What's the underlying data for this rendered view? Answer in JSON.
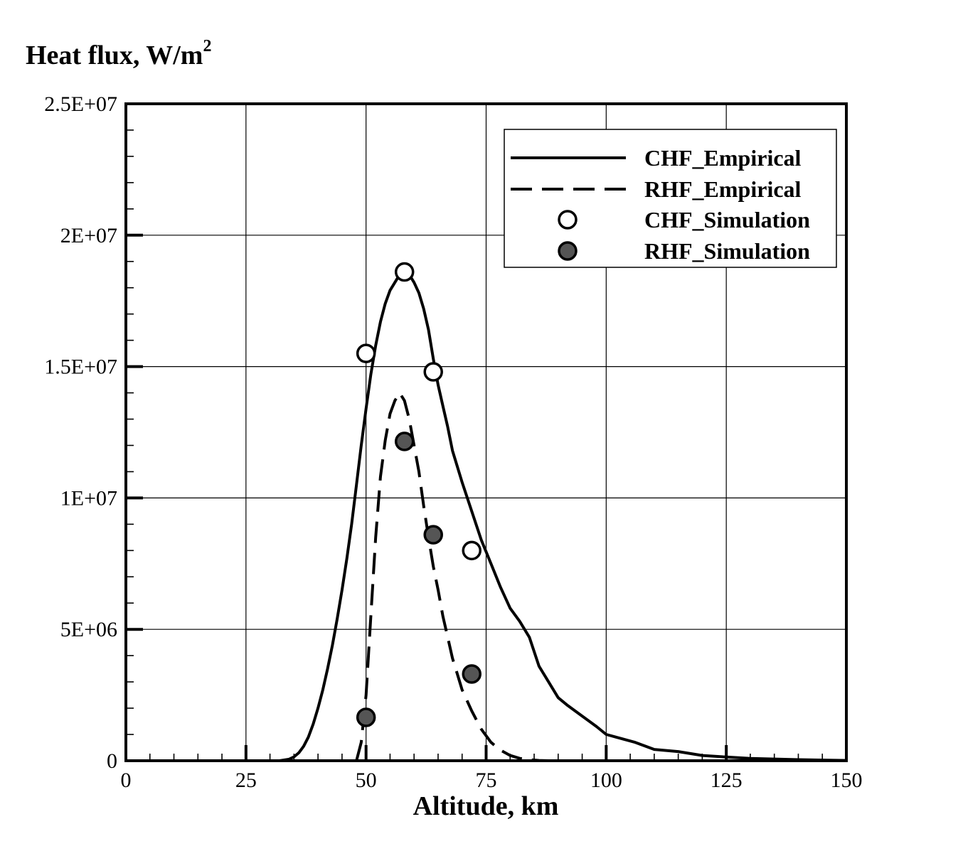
{
  "chart_data": {
    "type": "line",
    "title": "",
    "xlabel": "Altitude, km",
    "ylabel_main": "Heat flux, W/m",
    "ylabel_sup": "2",
    "xlim": [
      0,
      150
    ],
    "ylim": [
      0,
      25000000
    ],
    "grid": true,
    "legend_position": "top-right",
    "x_ticks": [
      {
        "value": 0,
        "label": "0"
      },
      {
        "value": 25,
        "label": "25"
      },
      {
        "value": 50,
        "label": "50"
      },
      {
        "value": 75,
        "label": "75"
      },
      {
        "value": 100,
        "label": "100"
      },
      {
        "value": 125,
        "label": "125"
      },
      {
        "value": 150,
        "label": "150"
      }
    ],
    "y_ticks": [
      {
        "value": 0,
        "label": "0"
      },
      {
        "value": 5000000,
        "label": "5E+06"
      },
      {
        "value": 10000000,
        "label": "1E+07"
      },
      {
        "value": 15000000,
        "label": "1.5E+07"
      },
      {
        "value": 20000000,
        "label": "2E+07"
      },
      {
        "value": 25000000,
        "label": "2.5E+07"
      }
    ],
    "series": [
      {
        "name": "CHF_Empirical",
        "kind": "line",
        "style": "solid",
        "color": "#000000",
        "points": [
          [
            0,
            0
          ],
          [
            25,
            0
          ],
          [
            32,
            0
          ],
          [
            34,
            60000
          ],
          [
            35,
            150000
          ],
          [
            36,
            300000
          ],
          [
            37,
            550000
          ],
          [
            38,
            900000
          ],
          [
            39,
            1400000
          ],
          [
            40,
            2000000
          ],
          [
            41,
            2700000
          ],
          [
            42,
            3500000
          ],
          [
            43,
            4400000
          ],
          [
            44,
            5400000
          ],
          [
            45,
            6500000
          ],
          [
            46,
            7700000
          ],
          [
            47,
            9000000
          ],
          [
            48,
            10500000
          ],
          [
            49,
            12000000
          ],
          [
            50,
            13400000
          ],
          [
            51,
            14700000
          ],
          [
            52,
            15800000
          ],
          [
            53,
            16700000
          ],
          [
            54,
            17400000
          ],
          [
            55,
            17900000
          ],
          [
            56,
            18200000
          ],
          [
            57,
            18500000
          ],
          [
            58,
            18600000
          ],
          [
            59,
            18500000
          ],
          [
            60,
            18200000
          ],
          [
            61,
            17800000
          ],
          [
            62,
            17200000
          ],
          [
            63,
            16400000
          ],
          [
            64,
            15300000
          ],
          [
            65,
            14300000
          ],
          [
            66,
            13500000
          ],
          [
            67,
            12700000
          ],
          [
            68,
            11800000
          ],
          [
            70,
            10600000
          ],
          [
            72,
            9500000
          ],
          [
            74,
            8400000
          ],
          [
            76,
            7500000
          ],
          [
            78,
            6600000
          ],
          [
            80,
            5800000
          ],
          [
            82,
            5300000
          ],
          [
            84,
            4700000
          ],
          [
            86,
            3600000
          ],
          [
            88,
            3000000
          ],
          [
            90,
            2400000
          ],
          [
            92,
            2100000
          ],
          [
            95,
            1700000
          ],
          [
            98,
            1300000
          ],
          [
            100,
            1000000
          ],
          [
            103,
            850000
          ],
          [
            106,
            700000
          ],
          [
            110,
            430000
          ],
          [
            115,
            350000
          ],
          [
            120,
            200000
          ],
          [
            125,
            140000
          ],
          [
            130,
            90000
          ],
          [
            140,
            40000
          ],
          [
            150,
            10000
          ]
        ]
      },
      {
        "name": "RHF_Empirical",
        "kind": "line",
        "style": "dashed",
        "color": "#000000",
        "points": [
          [
            48,
            0
          ],
          [
            49,
            700000
          ],
          [
            50,
            2500000
          ],
          [
            51,
            5500000
          ],
          [
            52,
            8500000
          ],
          [
            53,
            10800000
          ],
          [
            54,
            12200000
          ],
          [
            55,
            13200000
          ],
          [
            56,
            13700000
          ],
          [
            57,
            14000000
          ],
          [
            58,
            13700000
          ],
          [
            59,
            13000000
          ],
          [
            60,
            12000000
          ],
          [
            61,
            11000000
          ],
          [
            62,
            9700000
          ],
          [
            63,
            8500000
          ],
          [
            64,
            7400000
          ],
          [
            65,
            6500000
          ],
          [
            66,
            5500000
          ],
          [
            67,
            4700000
          ],
          [
            68,
            3900000
          ],
          [
            69,
            3300000
          ],
          [
            70,
            2700000
          ],
          [
            72,
            1900000
          ],
          [
            74,
            1200000
          ],
          [
            76,
            700000
          ],
          [
            78,
            400000
          ],
          [
            80,
            200000
          ],
          [
            82,
            90000
          ],
          [
            84,
            40000
          ],
          [
            86,
            10000
          ],
          [
            88,
            0
          ]
        ]
      },
      {
        "name": "CHF_Simulation",
        "kind": "marker",
        "marker": "open-circle",
        "color": "#ffffff",
        "points": [
          [
            50,
            15500000
          ],
          [
            58,
            18600000
          ],
          [
            64,
            14800000
          ],
          [
            72,
            8000000
          ]
        ]
      },
      {
        "name": "RHF_Simulation",
        "kind": "marker",
        "marker": "filled-circle",
        "color": "#555555",
        "points": [
          [
            50,
            1650000
          ],
          [
            58,
            12150000
          ],
          [
            64,
            8600000
          ],
          [
            72,
            3300000
          ]
        ]
      }
    ]
  }
}
